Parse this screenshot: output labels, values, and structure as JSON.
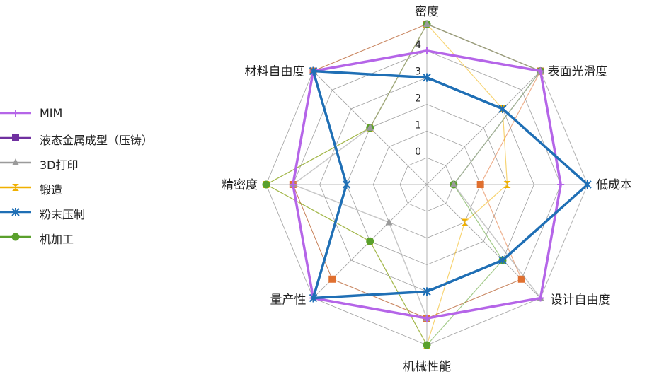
{
  "chart_data": {
    "type": "radar",
    "axes": [
      "密度",
      "表面光滑度",
      "低成本",
      "设计自由度",
      "机械性能",
      "量产性",
      "精密度",
      "材料自由度"
    ],
    "ticks": [
      "0",
      "1",
      "2",
      "3",
      "4"
    ],
    "rmin": -1,
    "rmax": 5,
    "grid": true,
    "legend_position": "left",
    "series": [
      {
        "name": "MIM",
        "color": "#b565e8",
        "marker": "plus-icon",
        "width": 3.5,
        "values": [
          4,
          5,
          4,
          5,
          4,
          5,
          4,
          5
        ]
      },
      {
        "name": "液态金属成型（压铸）",
        "color": "#e07030",
        "legend_color": "#7030a0",
        "marker": "square-icon",
        "width": 1.2,
        "values": [
          5,
          5,
          1,
          4,
          4,
          4,
          4,
          5
        ]
      },
      {
        "name": "3D打印",
        "color": "#9b9b9b",
        "marker": "triangle-icon",
        "width": 1.5,
        "values": [
          5,
          5,
          0,
          5,
          4,
          1,
          4,
          2
        ]
      },
      {
        "name": "锻造",
        "color": "#f0b000",
        "marker": "hourglass-icon",
        "width": 1.2,
        "values": [
          5,
          3,
          2,
          1,
          5,
          2,
          5,
          2
        ]
      },
      {
        "name": "粉末压制",
        "color": "#1f6fb5",
        "marker": "star-icon",
        "width": 3.5,
        "values": [
          3,
          3,
          5,
          3,
          3,
          5,
          2,
          5
        ]
      },
      {
        "name": "机加工",
        "color": "#5aa02c",
        "marker": "circle-icon",
        "width": 1.2,
        "values": [
          5,
          5,
          0,
          3,
          5,
          2,
          5,
          2
        ]
      }
    ]
  }
}
